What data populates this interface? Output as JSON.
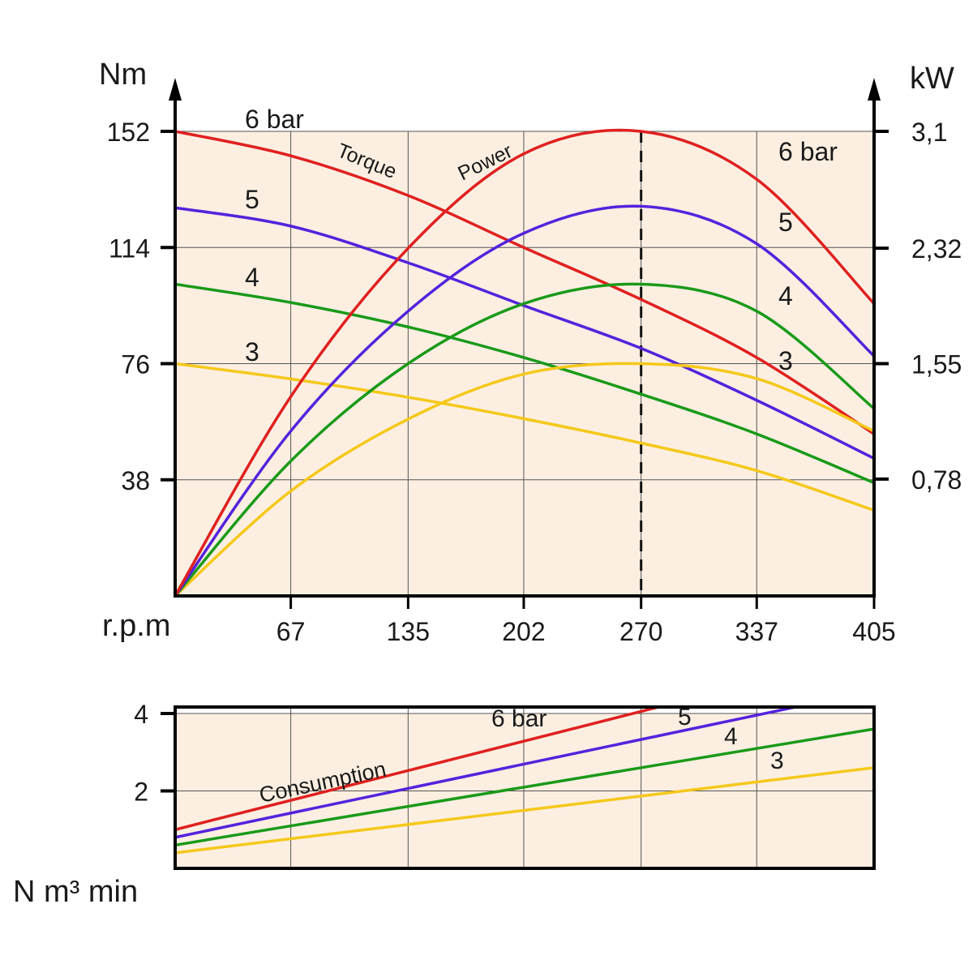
{
  "chart_data": [
    {
      "type": "line",
      "x_label": "r.p.m",
      "x_ticks": [
        67,
        135,
        202,
        270,
        337,
        405
      ],
      "x_range": [
        0,
        405
      ],
      "left_axis": {
        "label": "Nm",
        "ticks": [
          "38",
          "76",
          "114",
          "152"
        ],
        "range": [
          0,
          152
        ]
      },
      "right_axis": {
        "label": "kW",
        "ticks": [
          "0,78",
          "1,55",
          "2,32",
          "3,1"
        ],
        "range": [
          0,
          3.1
        ]
      },
      "grid": true,
      "marker_line": {
        "x": 270,
        "style": "dashed"
      },
      "annotations": {
        "torque": "Torque",
        "power": "Power"
      },
      "torque_series": [
        {
          "name": "6 bar",
          "label": "6 bar",
          "color": "#e02020",
          "points": [
            [
              0,
              152
            ],
            [
              67,
              144
            ],
            [
              135,
              131
            ],
            [
              202,
              114
            ],
            [
              270,
              97
            ],
            [
              337,
              78
            ],
            [
              405,
              53
            ]
          ]
        },
        {
          "name": "5",
          "label": "5",
          "color": "#5522dd",
          "points": [
            [
              0,
              127
            ],
            [
              67,
              121
            ],
            [
              135,
              109
            ],
            [
              202,
              95
            ],
            [
              270,
              81
            ],
            [
              337,
              64
            ],
            [
              405,
              45
            ]
          ]
        },
        {
          "name": "4",
          "label": "4",
          "color": "#1a9a1a",
          "points": [
            [
              0,
              102
            ],
            [
              67,
              96
            ],
            [
              135,
              88
            ],
            [
              202,
              78
            ],
            [
              270,
              66
            ],
            [
              337,
              53
            ],
            [
              405,
              37
            ]
          ]
        },
        {
          "name": "3",
          "label": "3",
          "color": "#f5c81a",
          "points": [
            [
              0,
              76
            ],
            [
              67,
              71
            ],
            [
              135,
              65
            ],
            [
              202,
              58
            ],
            [
              270,
              50
            ],
            [
              337,
              41
            ],
            [
              405,
              28
            ]
          ]
        }
      ],
      "power_series": [
        {
          "name": "6 bar",
          "label": "6 bar",
          "color": "#e02020",
          "points": [
            [
              0,
              0
            ],
            [
              67,
              1.33
            ],
            [
              135,
              2.32
            ],
            [
              202,
              2.95
            ],
            [
              270,
              3.1
            ],
            [
              337,
              2.78
            ],
            [
              405,
              1.95
            ]
          ]
        },
        {
          "name": "5",
          "label": "5",
          "color": "#5522dd",
          "points": [
            [
              0,
              0
            ],
            [
              67,
              1.1
            ],
            [
              135,
              1.9
            ],
            [
              202,
              2.42
            ],
            [
              270,
              2.6
            ],
            [
              337,
              2.35
            ],
            [
              405,
              1.6
            ]
          ]
        },
        {
          "name": "4",
          "label": "4",
          "color": "#1a9a1a",
          "points": [
            [
              0,
              0
            ],
            [
              67,
              0.9
            ],
            [
              135,
              1.55
            ],
            [
              202,
              1.95
            ],
            [
              270,
              2.08
            ],
            [
              337,
              1.9
            ],
            [
              405,
              1.25
            ]
          ]
        },
        {
          "name": "3",
          "label": "3",
          "color": "#f5c81a",
          "points": [
            [
              0,
              0
            ],
            [
              67,
              0.7
            ],
            [
              135,
              1.18
            ],
            [
              202,
              1.48
            ],
            [
              270,
              1.55
            ],
            [
              337,
              1.45
            ],
            [
              405,
              1.1
            ]
          ]
        }
      ]
    },
    {
      "type": "line",
      "y_label": "N m³ min",
      "y_ticks": [
        2,
        4
      ],
      "y_range": [
        0,
        4
      ],
      "x_range": [
        0,
        405
      ],
      "grid": true,
      "annotation": "Consumption",
      "series": [
        {
          "name": "6 bar",
          "label": "6 bar",
          "color": "#e02020",
          "points": [
            [
              0,
              1.0
            ],
            [
              283,
              4.2
            ]
          ]
        },
        {
          "name": "5",
          "label": "5",
          "color": "#5522dd",
          "points": [
            [
              0,
              0.8
            ],
            [
              363,
              4.2
            ]
          ]
        },
        {
          "name": "4",
          "label": "4",
          "color": "#1a9a1a",
          "points": [
            [
              0,
              0.6
            ],
            [
              405,
              3.6
            ]
          ]
        },
        {
          "name": "3",
          "label": "3",
          "color": "#f5c81a",
          "points": [
            [
              0,
              0.4
            ],
            [
              405,
              2.6
            ]
          ]
        }
      ]
    }
  ]
}
